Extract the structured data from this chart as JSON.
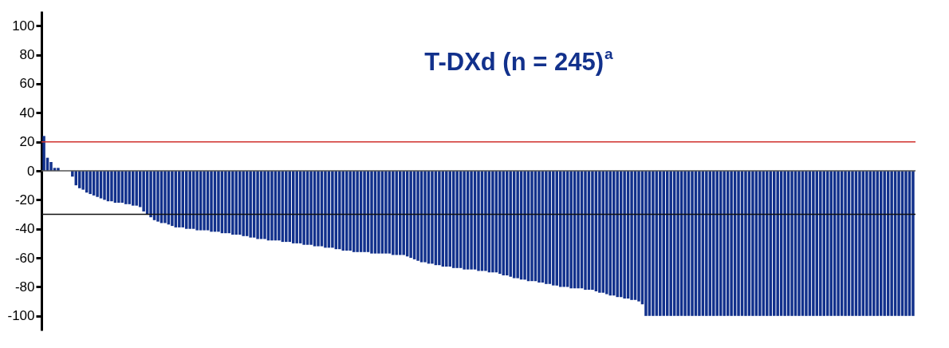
{
  "chart_data": {
    "type": "bar",
    "title": "T-DXd (n = 245)$^{a}$",
    "categories": [
      null,
      null,
      null,
      null,
      null,
      null,
      null,
      null,
      null,
      null,
      null,
      null,
      null,
      null,
      null,
      null,
      null,
      null,
      null,
      null,
      null,
      null,
      null,
      null,
      null,
      null,
      null,
      null,
      null,
      null,
      null,
      null,
      null,
      null,
      null,
      null,
      null,
      null,
      null,
      null,
      null,
      null,
      null,
      null,
      null,
      null,
      null,
      null,
      null,
      null,
      null,
      null,
      null,
      null,
      null,
      null,
      null,
      null,
      null,
      null,
      null,
      null,
      null,
      null,
      null,
      null,
      null,
      null,
      null,
      null,
      null,
      null,
      null,
      null,
      null,
      null,
      null,
      null,
      null,
      null,
      null,
      null,
      null,
      null,
      null,
      null,
      null,
      null,
      null,
      null,
      null,
      null,
      null,
      null,
      null,
      null,
      null,
      null,
      null,
      null,
      null,
      null,
      null,
      null,
      null,
      null,
      null,
      null,
      null,
      null,
      null,
      null,
      null,
      null,
      null,
      null,
      null,
      null,
      null,
      null,
      null,
      null,
      null,
      null,
      null,
      null,
      null,
      null,
      null,
      null,
      null,
      null,
      null,
      null,
      null,
      null,
      null,
      null,
      null,
      null,
      null,
      null,
      null,
      null,
      null,
      null,
      null,
      null,
      null,
      null,
      null,
      null,
      null,
      null,
      null,
      null,
      null,
      null,
      null,
      null,
      null,
      null,
      null,
      null,
      null,
      null,
      null,
      null,
      null,
      null,
      null,
      null,
      null,
      null,
      null,
      null,
      null,
      null,
      null,
      null,
      null,
      null,
      null,
      null,
      null,
      null,
      null,
      null,
      null,
      null,
      null,
      null,
      null,
      null,
      null,
      null,
      null,
      null,
      null,
      null,
      null,
      null,
      null,
      null,
      null,
      null,
      null,
      null,
      null,
      null,
      null,
      null,
      null,
      null,
      null,
      null,
      null,
      null,
      null,
      null,
      null,
      null,
      null,
      null,
      null,
      null,
      null,
      null,
      null,
      null,
      null,
      null,
      null,
      null,
      null,
      null,
      null,
      null,
      null,
      null,
      null,
      null,
      null,
      null,
      null
    ],
    "values": [
      24,
      9,
      6,
      2,
      2,
      0,
      0,
      0,
      -4,
      -10,
      -12,
      -13,
      -15,
      -16,
      -17,
      -18,
      -19,
      -20,
      -21,
      -21,
      -22,
      -22,
      -22,
      -23,
      -23,
      -24,
      -24,
      -25,
      -28,
      -30,
      -32,
      -34,
      -35,
      -36,
      -36,
      -37,
      -38,
      -39,
      -39,
      -39,
      -40,
      -40,
      -40,
      -41,
      -41,
      -41,
      -41,
      -42,
      -42,
      -42,
      -43,
      -43,
      -43,
      -44,
      -44,
      -44,
      -45,
      -45,
      -46,
      -46,
      -47,
      -47,
      -47,
      -48,
      -48,
      -48,
      -48,
      -49,
      -49,
      -49,
      -50,
      -50,
      -50,
      -51,
      -51,
      -51,
      -52,
      -52,
      -52,
      -53,
      -53,
      -53,
      -54,
      -54,
      -55,
      -55,
      -55,
      -56,
      -56,
      -56,
      -56,
      -56,
      -57,
      -57,
      -57,
      -57,
      -57,
      -57,
      -58,
      -58,
      -58,
      -58,
      -59,
      -60,
      -61,
      -62,
      -63,
      -63,
      -64,
      -64,
      -65,
      -65,
      -66,
      -66,
      -66,
      -67,
      -67,
      -67,
      -68,
      -68,
      -68,
      -68,
      -69,
      -69,
      -69,
      -70,
      -70,
      -70,
      -71,
      -72,
      -72,
      -73,
      -74,
      -74,
      -75,
      -75,
      -76,
      -76,
      -76,
      -77,
      -77,
      -78,
      -78,
      -79,
      -79,
      -80,
      -80,
      -80,
      -81,
      -81,
      -81,
      -81,
      -82,
      -82,
      -82,
      -83,
      -84,
      -84,
      -85,
      -86,
      -86,
      -87,
      -87,
      -88,
      -88,
      -89,
      -89,
      -90,
      -92,
      -100,
      -100,
      -100,
      -100,
      -100,
      -100,
      -100,
      -100,
      -100,
      -100,
      -100,
      -100,
      -100,
      -100,
      -100,
      -100,
      -100,
      -100,
      -100,
      -100,
      -100,
      -100,
      -100,
      -100,
      -100,
      -100,
      -100,
      -100,
      -100,
      -100,
      -100,
      -100,
      -100,
      -100,
      -100,
      -100,
      -100,
      -100,
      -100,
      -100,
      -100,
      -100,
      -100,
      -100,
      -100,
      -100,
      -100,
      -100,
      -100,
      -100,
      -100,
      -100,
      -100,
      -100,
      -100,
      -100,
      -100,
      -100,
      -100,
      -100,
      -100,
      -100,
      -100,
      -100,
      -100,
      -100,
      -100,
      -100,
      -100,
      -100,
      -100,
      -100,
      -100,
      -100,
      -100,
      -100
    ],
    "color": "#12318c",
    "ylim": [
      -110,
      110
    ],
    "yticks": [
      -100,
      -80,
      -60,
      -40,
      -20,
      0,
      20,
      40,
      60,
      80,
      100
    ],
    "ref_lines": [
      {
        "axis": "y",
        "value": 20,
        "color": "#d0312d"
      },
      {
        "axis": "y",
        "value": 0,
        "color": "#555555"
      },
      {
        "axis": "y",
        "value": -30,
        "color": "#111111"
      }
    ],
    "tick_labels": "y"
  }
}
